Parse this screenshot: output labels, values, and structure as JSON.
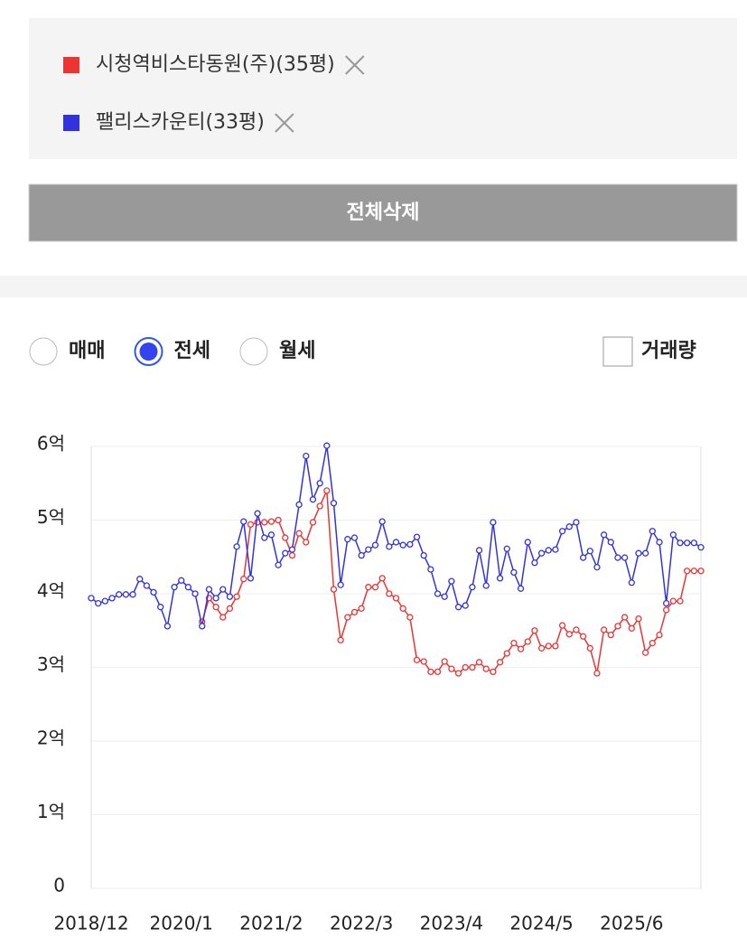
{
  "delete_button": "전체삭제",
  "options": {
    "radios": [
      "매매",
      "전세",
      "월세"
    ],
    "selected": 1,
    "checkbox": "거래량"
  },
  "chart_data": {
    "type": "line",
    "categories": [
      "2018/12",
      null,
      null,
      null,
      null,
      null,
      null,
      null,
      null,
      null,
      null,
      null,
      null,
      "2020/1",
      null,
      null,
      null,
      null,
      null,
      null,
      null,
      null,
      null,
      null,
      null,
      null,
      "2021/2",
      null,
      null,
      null,
      null,
      null,
      null,
      null,
      null,
      null,
      null,
      null,
      null,
      "2022/3",
      null,
      null,
      null,
      null,
      null,
      null,
      null,
      null,
      null,
      null,
      null,
      null,
      "2023/4",
      null,
      null,
      null,
      null,
      null,
      null,
      null,
      null,
      null,
      null,
      null,
      null,
      "2024/5",
      null,
      null,
      null,
      null,
      null,
      null,
      null,
      null,
      null,
      null,
      null,
      null,
      "2025/6",
      null,
      null,
      null,
      null,
      null,
      null,
      null,
      null,
      null,
      null
    ],
    "series": [
      {
        "name": "시청역비스타동원(주)(35평)",
        "color": "#ee3333",
        "values": [
          null,
          null,
          null,
          null,
          null,
          null,
          null,
          null,
          null,
          null,
          null,
          null,
          null,
          null,
          null,
          null,
          3.62,
          3.94,
          3.82,
          3.68,
          3.8,
          3.96,
          4.2,
          4.94,
          4.97,
          4.97,
          4.98,
          5.0,
          4.76,
          4.52,
          4.82,
          4.7,
          4.97,
          5.19,
          5.4,
          4.06,
          3.37,
          3.68,
          3.75,
          3.8,
          4.09,
          4.09,
          4.21,
          4.0,
          3.94,
          3.8,
          3.68,
          3.1,
          3.08,
          2.94,
          2.94,
          3.08,
          2.98,
          2.92,
          3.0,
          3.0,
          3.07,
          2.98,
          2.94,
          3.07,
          3.19,
          3.33,
          3.25,
          3.35,
          3.5,
          3.26,
          3.29,
          3.29,
          3.57,
          3.45,
          3.51,
          3.42,
          3.26,
          2.92,
          3.51,
          3.44,
          3.56,
          3.68,
          3.53,
          3.66,
          3.2,
          3.33,
          3.44,
          3.78,
          3.9,
          3.9,
          4.31,
          4.31,
          4.31
        ]
      },
      {
        "name": "팰리스카운티(33평)",
        "color": "#3333dd",
        "values": [
          3.94,
          3.87,
          3.9,
          3.94,
          3.99,
          3.99,
          3.99,
          4.2,
          4.11,
          4.02,
          3.82,
          3.56,
          4.09,
          4.18,
          4.09,
          4.0,
          3.56,
          4.06,
          3.94,
          4.06,
          3.96,
          4.64,
          4.98,
          4.21,
          5.09,
          4.76,
          4.8,
          4.39,
          4.55,
          4.6,
          5.21,
          5.87,
          5.28,
          5.5,
          6.01,
          5.23,
          4.12,
          4.74,
          4.76,
          4.52,
          4.6,
          4.66,
          4.98,
          4.64,
          4.7,
          4.66,
          4.67,
          4.77,
          4.52,
          4.33,
          4.0,
          3.96,
          4.17,
          3.82,
          3.84,
          4.09,
          4.59,
          4.11,
          4.97,
          4.21,
          4.61,
          4.29,
          4.07,
          4.7,
          4.42,
          4.55,
          4.59,
          4.6,
          4.85,
          4.91,
          4.97,
          4.49,
          4.58,
          4.36,
          4.8,
          4.7,
          4.49,
          4.49,
          4.15,
          4.55,
          4.55,
          4.85,
          4.7,
          3.87,
          4.8,
          4.69,
          4.69,
          4.69,
          4.63
        ]
      }
    ],
    "ylim": [
      0,
      6
    ],
    "yticks": [
      0,
      {
        "value": 1,
        "label": "1억"
      },
      {
        "value": 2,
        "label": "2억"
      },
      {
        "value": 3,
        "label": "3억"
      },
      {
        "value": 4,
        "label": "4억"
      },
      {
        "value": 5,
        "label": "5억"
      },
      {
        "value": 6,
        "label": "6억"
      }
    ],
    "grid": true
  }
}
